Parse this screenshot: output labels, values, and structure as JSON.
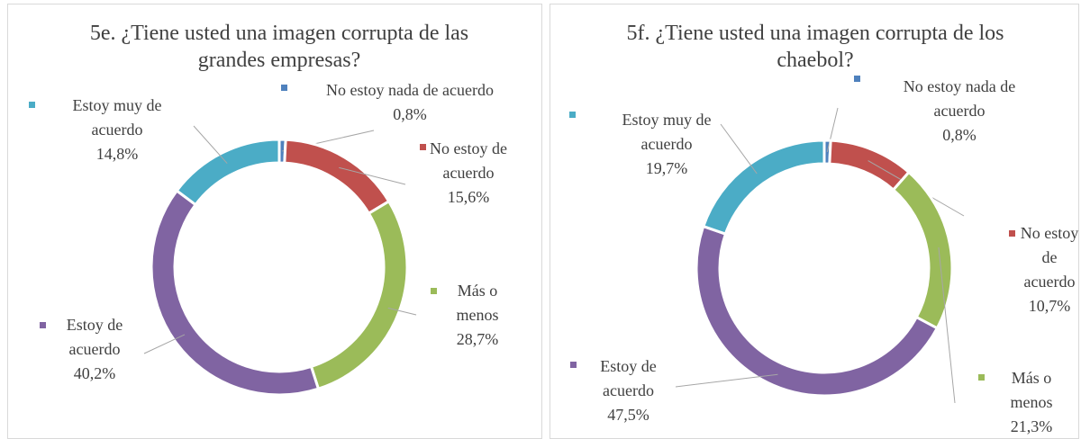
{
  "chart_data": [
    {
      "type": "donut",
      "title": "5e. ¿Tiene usted una imagen corrupta de las grandes empresas?",
      "categories": [
        "No estoy nada de acuerdo",
        "No estoy de acuerdo",
        "Más o menos",
        "Estoy de acuerdo",
        "Estoy muy de acuerdo"
      ],
      "values": [
        0.8,
        15.6,
        28.7,
        40.2,
        14.8
      ],
      "value_labels": [
        "0,8%",
        "15,6%",
        "28,7%",
        "40,2%",
        "14,8%"
      ],
      "colors": [
        "#4f81bd",
        "#c0504d",
        "#9bbb59",
        "#8064a2",
        "#4bacc6"
      ]
    },
    {
      "type": "donut",
      "title": "5f. ¿Tiene usted una imagen corrupta de los chaebol?",
      "categories": [
        "No estoy nada de acuerdo",
        "No estoy de acuerdo",
        "Más o menos",
        "Estoy de acuerdo",
        "Estoy muy de acuerdo"
      ],
      "values": [
        0.8,
        10.7,
        21.3,
        47.5,
        19.7
      ],
      "value_labels": [
        "0,8%",
        "10,7%",
        "21,3%",
        "47,5%",
        "19,7%"
      ],
      "colors": [
        "#4f81bd",
        "#c0504d",
        "#9bbb59",
        "#8064a2",
        "#4bacc6"
      ]
    }
  ]
}
